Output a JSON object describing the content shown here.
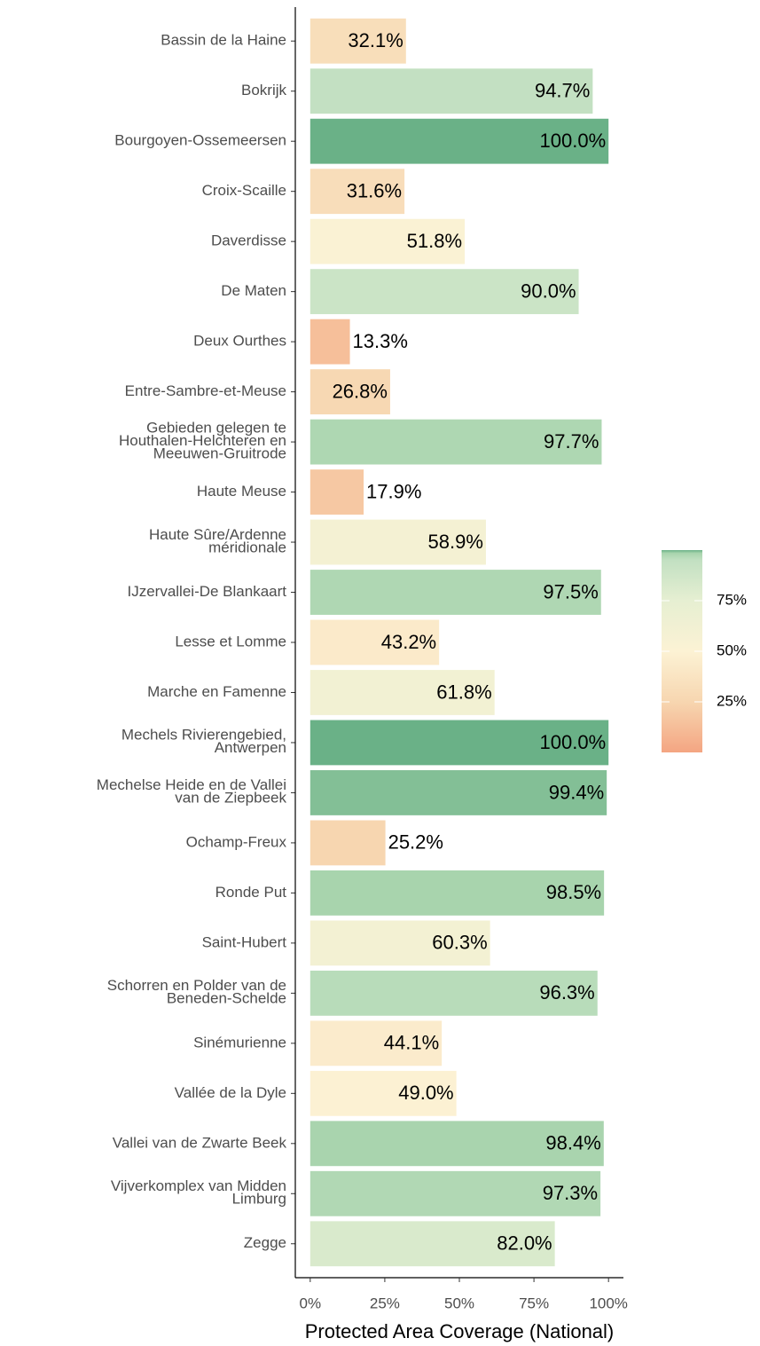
{
  "chart_data": {
    "type": "bar",
    "orientation": "horizontal",
    "x_label": "Protected Area Coverage (National)",
    "categories": [
      "Bassin de la Haine",
      "Bokrijk",
      "Bourgoyen-Ossemeersen",
      "Croix-Scaille",
      "Daverdisse",
      "De Maten",
      "Deux Ourthes",
      "Entre-Sambre-et-Meuse",
      "Gebieden gelegen te\nHouthalen-Helchteren en\nMeeuwen-Gruitrode",
      "Haute Meuse",
      "Haute Sûre/Ardenne\nméridionale",
      "IJzervallei-De Blankaart",
      "Lesse et Lomme",
      "Marche en Famenne",
      "Mechels Rivierengebied,\nAntwerpen",
      "Mechelse Heide en de Vallei\nvan de Ziepbeek",
      "Ochamp-Freux",
      "Ronde Put",
      "Saint-Hubert",
      "Schorren en Polder van de\nBeneden-Schelde",
      "Sinémurienne",
      "Vallée de la Dyle",
      "Vallei van de Zwarte Beek",
      "Vijverkomplex van Midden\nLimburg",
      "Zegge"
    ],
    "values": [
      32.1,
      94.7,
      100.0,
      31.6,
      51.8,
      90.0,
      13.3,
      26.8,
      97.7,
      17.9,
      58.9,
      97.5,
      43.2,
      61.8,
      100.0,
      99.4,
      25.2,
      98.5,
      60.3,
      96.3,
      44.1,
      49.0,
      98.4,
      97.3,
      82.0
    ],
    "value_labels": [
      "32.1%",
      "94.7%",
      "100.0%",
      "31.6%",
      "51.8%",
      "90.0%",
      "13.3%",
      "26.8%",
      "97.7%",
      "17.9%",
      "58.9%",
      "97.5%",
      "43.2%",
      "61.8%",
      "100.0%",
      "99.4%",
      "25.2%",
      "98.5%",
      "60.3%",
      "96.3%",
      "44.1%",
      "49.0%",
      "98.4%",
      "97.3%",
      "82.0%"
    ],
    "xlim": [
      -5,
      105
    ],
    "xticks": [
      {
        "value": 0,
        "label": "0%"
      },
      {
        "value": 25,
        "label": "25%"
      },
      {
        "value": 50,
        "label": "50%"
      },
      {
        "value": 75,
        "label": "75%"
      },
      {
        "value": 100,
        "label": "100%"
      }
    ],
    "colorbar": {
      "lim": [
        0,
        100
      ],
      "ticks": [
        {
          "value": 25,
          "label": "25%"
        },
        {
          "value": 50,
          "label": "50%"
        },
        {
          "value": 75,
          "label": "75%"
        }
      ],
      "color_stops": [
        [
          0,
          "#f4a582"
        ],
        [
          25,
          "#f7d6b0"
        ],
        [
          50,
          "#fcf2d4"
        ],
        [
          75,
          "#e6efd2"
        ],
        [
          95,
          "#c2e0c2"
        ],
        [
          98.5,
          "#a8d4ad"
        ],
        [
          100,
          "#6ab187"
        ]
      ]
    }
  }
}
